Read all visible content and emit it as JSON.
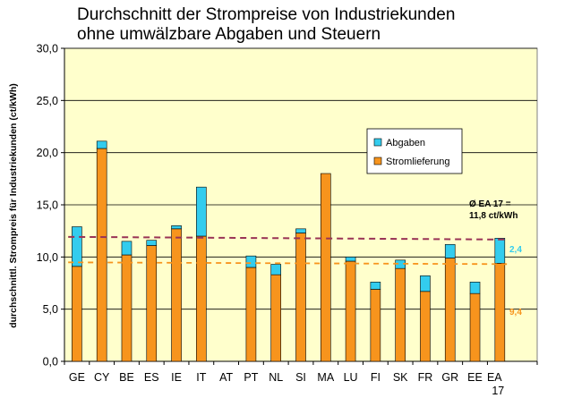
{
  "chart_data": {
    "type": "bar",
    "stacked": true,
    "title_line1": "Durchschnitt der Strompreise von Industriekunden",
    "title_line2": "ohne umwälzbare Abgaben und Steuern",
    "ylabel": "durchschnittl. Strompreis für Industriekunden (ct/kWh)",
    "ylim": [
      0,
      30
    ],
    "yticks": [
      "0,0",
      "5,0",
      "10,0",
      "15,0",
      "20,0",
      "25,0",
      "30,0"
    ],
    "grid": true,
    "legend_position": "right",
    "categories": [
      "GE",
      "CY",
      "BE",
      "ES",
      "IE",
      "IT",
      "AT",
      "PT",
      "NL",
      "SI",
      "MA",
      "LU",
      "FI",
      "SK",
      "FR",
      "GR",
      "EE",
      "EA 17"
    ],
    "series": [
      {
        "name": "Stromlieferung",
        "color": "#F7941D",
        "values": [
          9.1,
          20.4,
          10.2,
          11.1,
          12.7,
          12.0,
          0,
          9.0,
          8.3,
          12.3,
          18.0,
          9.6,
          6.9,
          8.9,
          6.7,
          9.9,
          6.5,
          9.4
        ]
      },
      {
        "name": "Abgaben",
        "color": "#33CCEE",
        "values": [
          3.8,
          0.7,
          1.3,
          0.5,
          0.3,
          4.7,
          0,
          1.1,
          1.0,
          0.4,
          0.0,
          0.4,
          0.7,
          0.8,
          1.5,
          1.3,
          1.1,
          2.4
        ]
      }
    ],
    "reference_lines": [
      {
        "value": 11.8,
        "color": "#993355",
        "label_line1": "Ø  EA 17 =",
        "label_line2": "11,8 ct/kWh",
        "label_color": "#000000"
      },
      {
        "value": 9.4,
        "color": "#F7941D",
        "label": "9,4",
        "label_color": "#F7941D"
      }
    ],
    "abgaben_annotation": {
      "label": "2,4",
      "color": "#33CCEE"
    },
    "plot_background": "#FFFFCC"
  }
}
